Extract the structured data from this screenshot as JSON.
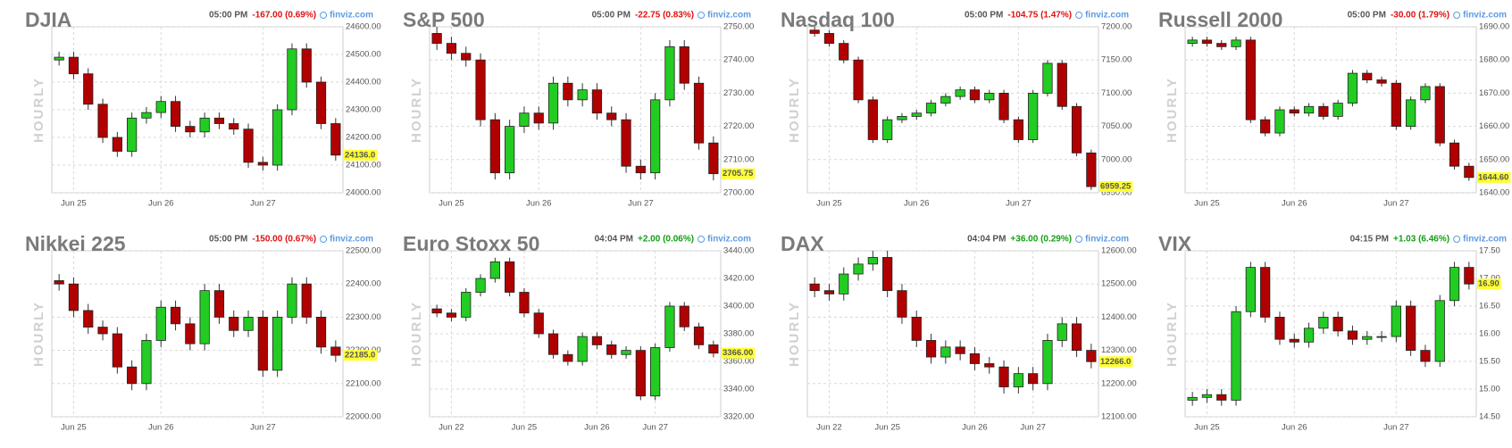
{
  "chart_data": [
    {
      "type": "candlestick",
      "title": "DJIA",
      "time": "05:00 PM",
      "change": "-167.00 (0.69%)",
      "change_color": "#e01010",
      "source": "finviz.com",
      "ylabel": "HOURLY",
      "grid": true,
      "up_color": "#22cc22",
      "down_color": "#b00000",
      "xticks": [
        {
          "value": 1,
          "label": "Jun 25"
        },
        {
          "value": 7,
          "label": "Jun 26"
        },
        {
          "value": 14,
          "label": "Jun 27"
        }
      ],
      "open": [
        24480,
        24490,
        24430,
        24320,
        24200,
        24150,
        24270,
        24290,
        24330,
        24240,
        24220,
        24270,
        24250,
        24230,
        24110,
        24100,
        24300,
        24520,
        24400,
        24250
      ],
      "high": [
        24510,
        24510,
        24450,
        24340,
        24220,
        24290,
        24310,
        24350,
        24350,
        24260,
        24290,
        24290,
        24270,
        24250,
        24130,
        24320,
        24540,
        24540,
        24420,
        24270
      ],
      "low": [
        24460,
        24410,
        24300,
        24180,
        24130,
        24130,
        24250,
        24270,
        24220,
        24200,
        24200,
        24230,
        24210,
        24090,
        24080,
        24080,
        24280,
        24380,
        24230,
        24116
      ],
      "close": [
        24490,
        24430,
        24320,
        24200,
        24150,
        24270,
        24290,
        24330,
        24240,
        24220,
        24270,
        24250,
        24230,
        24110,
        24100,
        24300,
        24520,
        24400,
        24250,
        24136
      ],
      "ylim": [
        24000,
        24600
      ],
      "yticks": [
        {
          "value": 24000,
          "label": "24000.00"
        },
        {
          "value": 24100,
          "label": "24100.00"
        },
        {
          "value": 24200,
          "label": "24200.00"
        },
        {
          "value": 24300,
          "label": "24300.00"
        },
        {
          "value": 24400,
          "label": "24400.00"
        },
        {
          "value": 24500,
          "label": "24500.00"
        },
        {
          "value": 24600,
          "label": "24600.00"
        }
      ],
      "last_price": {
        "value": 24136,
        "label": "24136.0"
      }
    },
    {
      "type": "candlestick",
      "title": "S&P 500",
      "time": "05:00 PM",
      "change": "-22.75 (0.83%)",
      "change_color": "#e01010",
      "source": "finviz.com",
      "ylabel": "HOURLY",
      "grid": true,
      "up_color": "#22cc22",
      "down_color": "#b00000",
      "xticks": [
        {
          "value": 1,
          "label": "Jun 25"
        },
        {
          "value": 7,
          "label": "Jun 26"
        },
        {
          "value": 14,
          "label": "Jun 27"
        }
      ],
      "open": [
        2748,
        2745,
        2742,
        2740,
        2722,
        2706,
        2720,
        2724,
        2721,
        2733,
        2728,
        2731,
        2724,
        2722,
        2708,
        2706,
        2728,
        2744,
        2733,
        2715
      ],
      "high": [
        2750,
        2747,
        2744,
        2742,
        2724,
        2722,
        2726,
        2726,
        2735,
        2735,
        2733,
        2733,
        2726,
        2724,
        2710,
        2730,
        2746,
        2746,
        2735,
        2717
      ],
      "low": [
        2743,
        2740,
        2738,
        2720,
        2704,
        2704,
        2718,
        2719,
        2719,
        2726,
        2726,
        2722,
        2720,
        2706,
        2704,
        2704,
        2726,
        2731,
        2713,
        2703.75
      ],
      "close": [
        2745,
        2742,
        2740,
        2722,
        2706,
        2720,
        2724,
        2721,
        2733,
        2728,
        2731,
        2724,
        2722,
        2708,
        2706,
        2728,
        2744,
        2733,
        2715,
        2705.75
      ],
      "ylim": [
        2700,
        2750
      ],
      "yticks": [
        {
          "value": 2700,
          "label": "2700.00"
        },
        {
          "value": 2710,
          "label": "2710.00"
        },
        {
          "value": 2720,
          "label": "2720.00"
        },
        {
          "value": 2730,
          "label": "2730.00"
        },
        {
          "value": 2740,
          "label": "2740.00"
        },
        {
          "value": 2750,
          "label": "2750.00"
        }
      ],
      "last_price": {
        "value": 2705.75,
        "label": "2705.75"
      }
    },
    {
      "type": "candlestick",
      "title": "Nasdaq 100",
      "time": "05:00 PM",
      "change": "-104.75 (1.47%)",
      "change_color": "#e01010",
      "source": "finviz.com",
      "ylabel": "HOURLY",
      "grid": true,
      "up_color": "#22cc22",
      "down_color": "#b00000",
      "xticks": [
        {
          "value": 1,
          "label": "Jun 25"
        },
        {
          "value": 7,
          "label": "Jun 26"
        },
        {
          "value": 14,
          "label": "Jun 27"
        }
      ],
      "open": [
        7195,
        7190,
        7175,
        7150,
        7090,
        7030,
        7060,
        7065,
        7070,
        7085,
        7095,
        7105,
        7090,
        7100,
        7060,
        7030,
        7100,
        7145,
        7080,
        7010
      ],
      "high": [
        7200,
        7195,
        7180,
        7155,
        7095,
        7065,
        7070,
        7075,
        7090,
        7100,
        7110,
        7110,
        7105,
        7105,
        7065,
        7105,
        7150,
        7150,
        7085,
        7015
      ],
      "low": [
        7185,
        7170,
        7145,
        7085,
        7025,
        7025,
        7055,
        7060,
        7065,
        7080,
        7090,
        7085,
        7085,
        7055,
        7025,
        7025,
        7095,
        7075,
        7005,
        6954.25
      ],
      "close": [
        7190,
        7175,
        7150,
        7090,
        7030,
        7060,
        7065,
        7070,
        7085,
        7095,
        7105,
        7090,
        7100,
        7060,
        7030,
        7100,
        7145,
        7080,
        7010,
        6959.25
      ],
      "ylim": [
        6950,
        7200
      ],
      "yticks": [
        {
          "value": 6950,
          "label": "6950.00"
        },
        {
          "value": 7000,
          "label": "7000.00"
        },
        {
          "value": 7050,
          "label": "7050.00"
        },
        {
          "value": 7100,
          "label": "7100.00"
        },
        {
          "value": 7150,
          "label": "7150.00"
        },
        {
          "value": 7200,
          "label": "7200.00"
        }
      ],
      "last_price": {
        "value": 6959.25,
        "label": "6959.25"
      }
    },
    {
      "type": "candlestick",
      "title": "Russell 2000",
      "time": "05:00 PM",
      "change": "-30.00 (1.79%)",
      "change_color": "#e01010",
      "source": "finviz.com",
      "ylabel": "HOURLY",
      "grid": true,
      "up_color": "#22cc22",
      "down_color": "#b00000",
      "xticks": [
        {
          "value": 1,
          "label": "Jun 25"
        },
        {
          "value": 7,
          "label": "Jun 26"
        },
        {
          "value": 14,
          "label": "Jun 27"
        }
      ],
      "open": [
        1685,
        1686,
        1685,
        1684,
        1686,
        1662,
        1658,
        1665,
        1664,
        1666,
        1663,
        1667,
        1676,
        1674,
        1673,
        1660,
        1668,
        1672,
        1655,
        1648
      ],
      "high": [
        1687,
        1687,
        1686,
        1687,
        1687,
        1663,
        1666,
        1666,
        1667,
        1667,
        1668,
        1677,
        1677,
        1675,
        1674,
        1669,
        1673,
        1673,
        1656,
        1649
      ],
      "low": [
        1684,
        1684,
        1683,
        1683,
        1661,
        1657,
        1657,
        1663,
        1663,
        1662,
        1662,
        1666,
        1673,
        1672,
        1659,
        1659,
        1667,
        1654,
        1647,
        1643.6
      ],
      "close": [
        1686,
        1685,
        1684,
        1686,
        1662,
        1658,
        1665,
        1664,
        1666,
        1663,
        1667,
        1676,
        1674,
        1673,
        1660,
        1668,
        1672,
        1655,
        1648,
        1644.6
      ],
      "ylim": [
        1640,
        1690
      ],
      "yticks": [
        {
          "value": 1640,
          "label": "1640.00"
        },
        {
          "value": 1650,
          "label": "1650.00"
        },
        {
          "value": 1660,
          "label": "1660.00"
        },
        {
          "value": 1670,
          "label": "1670.00"
        },
        {
          "value": 1680,
          "label": "1680.00"
        },
        {
          "value": 1690,
          "label": "1690.00"
        }
      ],
      "last_price": {
        "value": 1644.6,
        "label": "1644.60"
      }
    },
    {
      "type": "candlestick",
      "title": "Nikkei 225",
      "time": "05:00 PM",
      "change": "-150.00 (0.67%)",
      "change_color": "#e01010",
      "source": "finviz.com",
      "ylabel": "HOURLY",
      "grid": true,
      "up_color": "#22cc22",
      "down_color": "#b00000",
      "xticks": [
        {
          "value": 1,
          "label": "Jun 25"
        },
        {
          "value": 7,
          "label": "Jun 26"
        },
        {
          "value": 14,
          "label": "Jun 27"
        }
      ],
      "open": [
        22410,
        22400,
        22320,
        22270,
        22250,
        22150,
        22100,
        22230,
        22330,
        22280,
        22220,
        22380,
        22300,
        22260,
        22300,
        22140,
        22300,
        22400,
        22300,
        22210
      ],
      "high": [
        22430,
        22420,
        22340,
        22290,
        22270,
        22170,
        22250,
        22350,
        22350,
        22300,
        22400,
        22400,
        22320,
        22320,
        22320,
        22320,
        22420,
        22420,
        22320,
        22230
      ],
      "low": [
        22380,
        22300,
        22250,
        22230,
        22130,
        22080,
        22080,
        22210,
        22260,
        22200,
        22200,
        22280,
        22240,
        22240,
        22120,
        22120,
        22280,
        22280,
        22190,
        22165
      ],
      "close": [
        22400,
        22320,
        22270,
        22250,
        22150,
        22100,
        22230,
        22330,
        22280,
        22220,
        22380,
        22300,
        22260,
        22300,
        22140,
        22300,
        22400,
        22300,
        22210,
        22185
      ],
      "ylim": [
        22000,
        22500
      ],
      "yticks": [
        {
          "value": 22000,
          "label": "22000.00"
        },
        {
          "value": 22100,
          "label": "22100.00"
        },
        {
          "value": 22200,
          "label": "22200.00"
        },
        {
          "value": 22300,
          "label": "22300.00"
        },
        {
          "value": 22400,
          "label": "22400.00"
        },
        {
          "value": 22500,
          "label": "22500.00"
        }
      ],
      "last_price": {
        "value": 22185,
        "label": "22185.0"
      }
    },
    {
      "type": "candlestick",
      "title": "Euro Stoxx 50",
      "time": "04:04 PM",
      "change": "+2.00 (0.06%)",
      "change_color": "#10a010",
      "source": "finviz.com",
      "ylabel": "HOURLY",
      "grid": true,
      "up_color": "#22cc22",
      "down_color": "#b00000",
      "xticks": [
        {
          "value": 1,
          "label": "Jun 22"
        },
        {
          "value": 6,
          "label": "Jun 25"
        },
        {
          "value": 11,
          "label": "Jun 26"
        },
        {
          "value": 15,
          "label": "Jun 27"
        }
      ],
      "open": [
        3398,
        3395,
        3392,
        3410,
        3420,
        3432,
        3410,
        3395,
        3380,
        3365,
        3360,
        3378,
        3372,
        3365,
        3368,
        3335,
        3370,
        3400,
        3385,
        3372
      ],
      "high": [
        3401,
        3398,
        3413,
        3423,
        3435,
        3435,
        3413,
        3398,
        3383,
        3368,
        3381,
        3381,
        3375,
        3371,
        3371,
        3373,
        3403,
        3403,
        3388,
        3375
      ],
      "low": [
        3392,
        3389,
        3389,
        3407,
        3417,
        3407,
        3392,
        3377,
        3362,
        3357,
        3357,
        3369,
        3362,
        3362,
        3332,
        3332,
        3367,
        3382,
        3369,
        3363
      ],
      "close": [
        3395,
        3392,
        3410,
        3420,
        3432,
        3410,
        3395,
        3380,
        3365,
        3360,
        3378,
        3372,
        3365,
        3368,
        3335,
        3370,
        3400,
        3385,
        3372,
        3366
      ],
      "ylim": [
        3320,
        3440
      ],
      "yticks": [
        {
          "value": 3320,
          "label": "3320.00"
        },
        {
          "value": 3340,
          "label": "3340.00"
        },
        {
          "value": 3360,
          "label": "3360.00"
        },
        {
          "value": 3380,
          "label": "3380.00"
        },
        {
          "value": 3400,
          "label": "3400.00"
        },
        {
          "value": 3420,
          "label": "3420.00"
        },
        {
          "value": 3440,
          "label": "3440.00"
        }
      ],
      "last_price": {
        "value": 3366,
        "label": "3366.00"
      }
    },
    {
      "type": "candlestick",
      "title": "DAX",
      "time": "04:04 PM",
      "change": "+36.00 (0.29%)",
      "change_color": "#10a010",
      "source": "finviz.com",
      "ylabel": "HOURLY",
      "grid": true,
      "up_color": "#22cc22",
      "down_color": "#b00000",
      "xticks": [
        {
          "value": 1,
          "label": "Jun 22"
        },
        {
          "value": 5,
          "label": "Jun 25"
        },
        {
          "value": 11,
          "label": "Jun 26"
        },
        {
          "value": 15,
          "label": "Jun 27"
        }
      ],
      "open": [
        12500,
        12480,
        12470,
        12530,
        12560,
        12580,
        12480,
        12400,
        12330,
        12280,
        12310,
        12290,
        12260,
        12250,
        12190,
        12230,
        12200,
        12330,
        12380,
        12300
      ],
      "high": [
        12520,
        12500,
        12550,
        12580,
        12600,
        12600,
        12500,
        12420,
        12350,
        12330,
        12330,
        12310,
        12280,
        12270,
        12250,
        12250,
        12350,
        12400,
        12400,
        12320
      ],
      "low": [
        12460,
        12450,
        12450,
        12510,
        12540,
        12460,
        12380,
        12310,
        12260,
        12260,
        12270,
        12240,
        12230,
        12170,
        12170,
        12180,
        12180,
        12310,
        12280,
        12246
      ],
      "close": [
        12480,
        12470,
        12530,
        12560,
        12580,
        12480,
        12400,
        12330,
        12280,
        12310,
        12290,
        12260,
        12250,
        12190,
        12230,
        12200,
        12330,
        12380,
        12300,
        12266
      ],
      "ylim": [
        12100,
        12600
      ],
      "yticks": [
        {
          "value": 12100,
          "label": "12100.00"
        },
        {
          "value": 12200,
          "label": "12200.00"
        },
        {
          "value": 12300,
          "label": "12300.00"
        },
        {
          "value": 12400,
          "label": "12400.00"
        },
        {
          "value": 12500,
          "label": "12500.00"
        },
        {
          "value": 12600,
          "label": "12600.00"
        }
      ],
      "last_price": {
        "value": 12266,
        "label": "12266.0"
      }
    },
    {
      "type": "candlestick",
      "title": "VIX",
      "time": "04:15 PM",
      "change": "+1.03 (6.46%)",
      "change_color": "#10a010",
      "source": "finviz.com",
      "ylabel": "HOURLY",
      "grid": true,
      "up_color": "#22cc22",
      "down_color": "#b00000",
      "xticks": [
        {
          "value": 1,
          "label": "Jun 25"
        },
        {
          "value": 7,
          "label": "Jun 26"
        },
        {
          "value": 14,
          "label": "Jun 27"
        }
      ],
      "open": [
        14.8,
        14.85,
        14.9,
        14.8,
        16.4,
        17.2,
        16.3,
        15.9,
        15.85,
        16.1,
        16.3,
        16.05,
        15.9,
        15.95,
        15.95,
        16.5,
        15.7,
        15.5,
        16.6,
        17.2
      ],
      "high": [
        14.95,
        15,
        15,
        16.5,
        17.3,
        17.3,
        16.4,
        16,
        16.2,
        16.4,
        16.4,
        16.15,
        16.05,
        16.05,
        16.6,
        16.6,
        15.8,
        16.7,
        17.3,
        17.3
      ],
      "low": [
        14.7,
        14.75,
        14.7,
        14.7,
        16.3,
        16.2,
        15.8,
        15.75,
        15.75,
        16,
        15.95,
        15.8,
        15.8,
        15.85,
        15.85,
        15.6,
        15.4,
        15.4,
        16.5,
        16.8
      ],
      "close": [
        14.85,
        14.9,
        14.8,
        16.4,
        17.2,
        16.3,
        15.9,
        15.85,
        16.1,
        16.3,
        16.05,
        15.9,
        15.95,
        15.95,
        16.5,
        15.7,
        15.5,
        16.6,
        17.2,
        16.9
      ],
      "ylim": [
        14.5,
        17.5
      ],
      "yticks": [
        {
          "value": 14.5,
          "label": "14.50"
        },
        {
          "value": 15,
          "label": "15.00"
        },
        {
          "value": 15.5,
          "label": "15.50"
        },
        {
          "value": 16,
          "label": "16.00"
        },
        {
          "value": 16.5,
          "label": "16.50"
        },
        {
          "value": 17,
          "label": "17.00"
        },
        {
          "value": 17.5,
          "label": "17.50"
        }
      ],
      "last_price": {
        "value": 16.9,
        "label": "16.90"
      }
    }
  ]
}
